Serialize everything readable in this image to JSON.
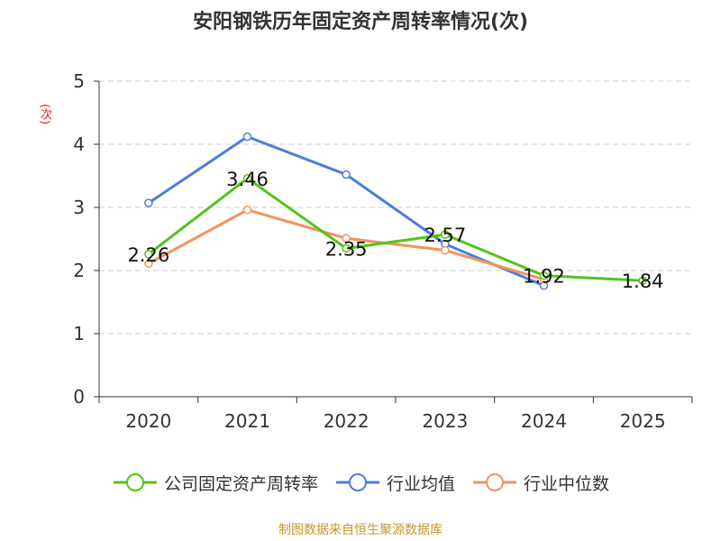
{
  "chart_data": {
    "type": "line",
    "title": "安阳钢铁历年固定资产周转率情况(次)",
    "ylabel": "(次)",
    "xlabel": "",
    "categories": [
      "2020",
      "2021",
      "2022",
      "2023",
      "2024",
      "2025"
    ],
    "ylim": [
      0,
      5
    ],
    "yticks": [
      0,
      1,
      2,
      3,
      4,
      5
    ],
    "grid": true,
    "legend_position": "bottom",
    "series": [
      {
        "name": "公司固定资产周转率",
        "color": "#52c41a",
        "values": [
          2.26,
          3.46,
          2.35,
          2.57,
          1.92,
          1.84
        ],
        "labels": [
          "2.26",
          "3.46",
          "2.35",
          "2.57",
          "1.92",
          "1.84"
        ]
      },
      {
        "name": "行业均值",
        "color": "#4a7fdb",
        "values": [
          3.07,
          4.12,
          3.52,
          2.42,
          1.76,
          null
        ]
      },
      {
        "name": "行业中位数",
        "color": "#f5925a",
        "values": [
          2.11,
          2.96,
          2.51,
          2.32,
          1.86,
          null
        ]
      }
    ]
  },
  "source": "制图数据来自恒生聚源数据库"
}
